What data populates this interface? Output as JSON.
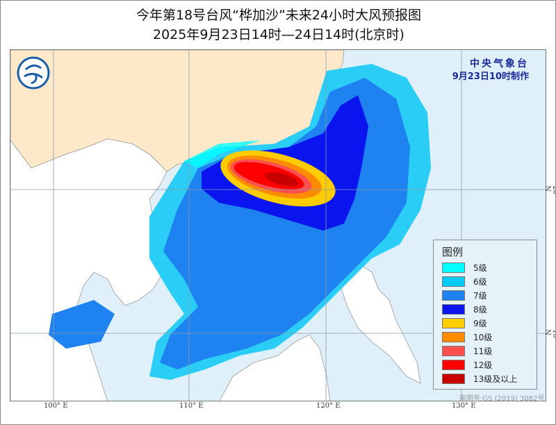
{
  "title": {
    "line1": "今年第18号台风“桦加沙”未来24小时大风预报图",
    "line2": "2025年9月23日14时—24日14时(北京时)"
  },
  "agency": {
    "name": "中央气象台",
    "issued": "9月23日10时制作",
    "logo": "中央气象台 logo"
  },
  "legend": {
    "title": "图例",
    "items": [
      {
        "label": "5级",
        "color": "#00ffff"
      },
      {
        "label": "6级",
        "color": "#00ccf5"
      },
      {
        "label": "7级",
        "color": "#1e82f0"
      },
      {
        "label": "8级",
        "color": "#0a14ef"
      },
      {
        "label": "9级",
        "color": "#ffcc00"
      },
      {
        "label": "10级",
        "color": "#ff8c00"
      },
      {
        "label": "11级",
        "color": "#ff5050"
      },
      {
        "label": "12级",
        "color": "#ff0000"
      },
      {
        "label": "13级及以上",
        "color": "#c80000"
      }
    ]
  },
  "axes": {
    "lon": [
      "100° E",
      "110° E",
      "120° E",
      "130° E"
    ],
    "lat": [
      "20° N",
      "10° N"
    ]
  },
  "approval": "审图号:GS (2019) 3082号",
  "colors": {
    "ocean": "#dff0fa",
    "china_land": "#fde9c9",
    "other_land": "#ffffff"
  }
}
